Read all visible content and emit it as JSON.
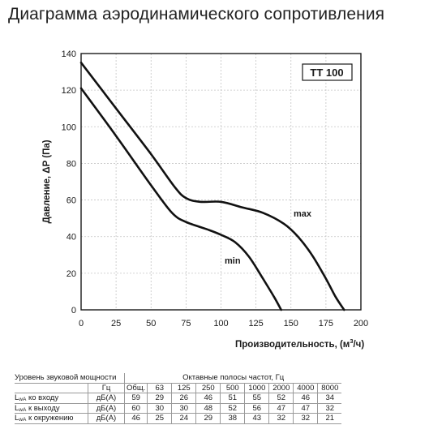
{
  "header": {
    "title": "Диаграмма аэродинамического сопротивления"
  },
  "chart_data": {
    "type": "line",
    "title": "",
    "model_label": "TT 100",
    "xlabel_prefix": "Производительность, (м",
    "xlabel_sup": "3",
    "xlabel_suffix": "/ч)",
    "ylabel": "Давление, ΔP (Па)",
    "xlim": [
      0,
      200
    ],
    "ylim": [
      0,
      140
    ],
    "x_ticks": [
      0,
      25,
      50,
      75,
      100,
      125,
      150,
      175,
      200
    ],
    "y_ticks": [
      0,
      20,
      40,
      60,
      80,
      100,
      120,
      140
    ],
    "grid": true,
    "series": [
      {
        "name": "max",
        "x": [
          0,
          25,
          50,
          67,
          75,
          85,
          100,
          115,
          130,
          145,
          155,
          165,
          175,
          182,
          188
        ],
        "y": [
          135,
          110,
          85,
          67,
          61,
          59,
          59,
          56,
          53,
          47,
          40,
          30,
          17,
          7,
          0
        ]
      },
      {
        "name": "min",
        "x": [
          0,
          25,
          50,
          65,
          75,
          90,
          100,
          110,
          120,
          130,
          138,
          143
        ],
        "y": [
          121,
          95,
          68,
          53,
          48,
          44,
          41,
          37,
          29,
          17,
          7,
          0
        ]
      }
    ]
  },
  "sound_table": {
    "title": "Уровень звуковой мощности",
    "bands_header": "Октавные полосы частот, Гц",
    "unit_header": "Гц",
    "columns": [
      "Общ.",
      "63",
      "125",
      "250",
      "500",
      "1000",
      "2000",
      "4000",
      "8000"
    ],
    "rows": [
      {
        "label_main": "L",
        "label_sub": "wA",
        "label_rest": " ко входу",
        "unit": "дБ(А)",
        "values": [
          "59",
          "29",
          "26",
          "46",
          "51",
          "55",
          "52",
          "46",
          "34"
        ]
      },
      {
        "label_main": "L",
        "label_sub": "wA",
        "label_rest": " к выходу",
        "unit": "дБ(А)",
        "values": [
          "60",
          "30",
          "30",
          "48",
          "52",
          "56",
          "47",
          "47",
          "32"
        ]
      },
      {
        "label_main": "L",
        "label_sub": "wA",
        "label_rest": " к окружению",
        "unit": "дБ(А)",
        "values": [
          "46",
          "25",
          "24",
          "29",
          "38",
          "43",
          "32",
          "32",
          "21"
        ]
      }
    ]
  }
}
